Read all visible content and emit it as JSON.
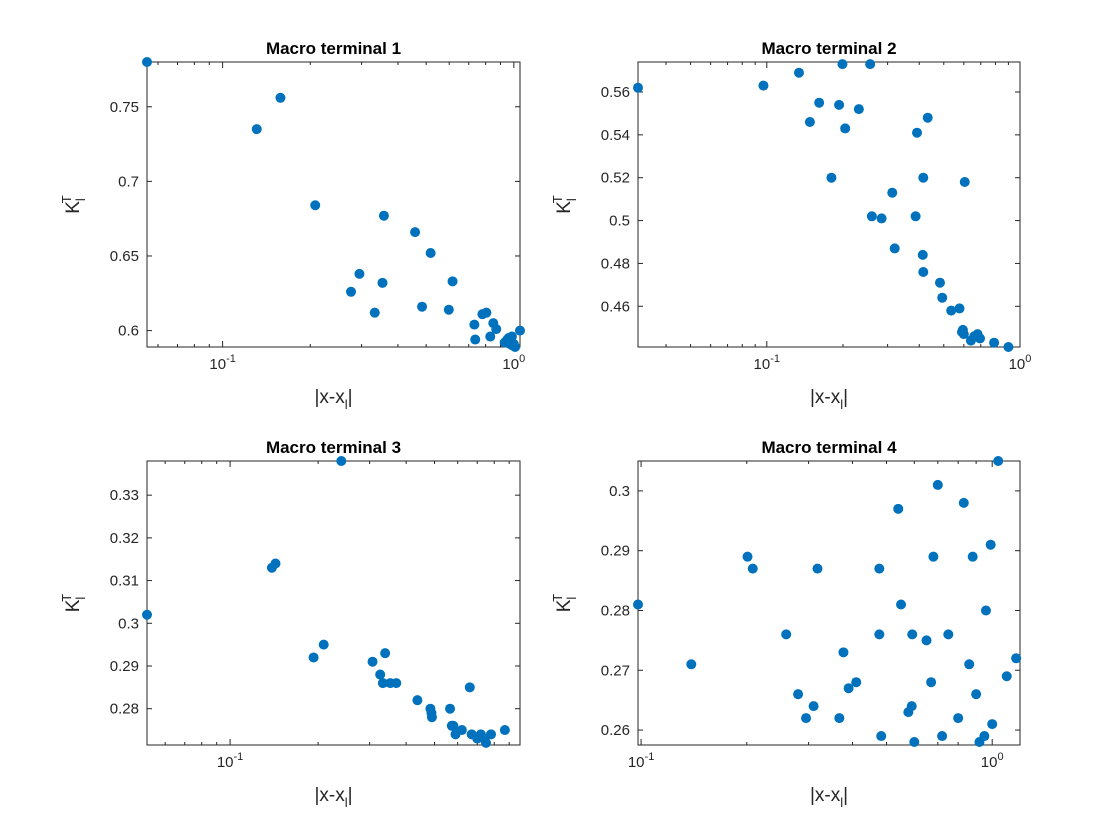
{
  "figure": {
    "background": "#ffffff",
    "marker_color": "#0072bd"
  },
  "chart_data": [
    {
      "type": "scatter",
      "title": "Macro terminal 1",
      "xlabel": "|x-x_l|",
      "ylabel": "K_l^T",
      "xscale": "log",
      "xlim": [
        0.055,
        1.05
      ],
      "ylim": [
        0.589,
        0.78
      ],
      "xticks": [
        0.1,
        1
      ],
      "xtick_labels": [
        "10^-1",
        "10^0"
      ],
      "yticks": [
        0.6,
        0.65,
        0.7,
        0.75
      ],
      "ytick_labels": [
        "0.6",
        "0.65",
        "0.7",
        "0.75"
      ],
      "grid": false,
      "x": [
        0.055,
        0.131,
        0.158,
        0.208,
        0.276,
        0.295,
        0.333,
        0.354,
        0.358,
        0.458,
        0.484,
        0.518,
        0.598,
        0.616,
        0.732,
        0.737,
        0.78,
        0.805,
        0.83,
        0.85,
        0.87,
        0.93,
        0.96,
        0.97,
        0.99,
        1.0,
        1.01,
        1.05,
        0.95,
        0.985
      ],
      "y": [
        0.78,
        0.735,
        0.756,
        0.684,
        0.626,
        0.638,
        0.612,
        0.632,
        0.677,
        0.666,
        0.616,
        0.652,
        0.614,
        0.633,
        0.604,
        0.594,
        0.611,
        0.612,
        0.596,
        0.605,
        0.601,
        0.592,
        0.595,
        0.591,
        0.59,
        0.591,
        0.589,
        0.6,
        0.594,
        0.596
      ]
    },
    {
      "type": "scatter",
      "title": "Macro terminal 2",
      "xlabel": "|x-x_l|",
      "ylabel": "K_l^T",
      "xscale": "log",
      "xlim": [
        0.031,
        1.0
      ],
      "ylim": [
        0.441,
        0.574
      ],
      "xticks": [
        0.1,
        1
      ],
      "xtick_labels": [
        "10^-1",
        "10^0"
      ],
      "yticks": [
        0.46,
        0.48,
        0.5,
        0.52,
        0.54,
        0.56
      ],
      "ytick_labels": [
        "0.46",
        "0.48",
        "0.5",
        "0.52",
        "0.54",
        "0.56"
      ],
      "grid": false,
      "x": [
        0.031,
        0.097,
        0.134,
        0.148,
        0.161,
        0.18,
        0.193,
        0.204,
        0.199,
        0.231,
        0.256,
        0.26,
        0.284,
        0.313,
        0.32,
        0.387,
        0.392,
        0.415,
        0.413,
        0.415,
        0.432,
        0.483,
        0.493,
        0.535,
        0.577,
        0.595,
        0.6,
        0.605,
        0.64,
        0.66,
        0.68,
        0.695,
        0.79,
        0.9,
        0.59
      ],
      "y": [
        0.562,
        0.563,
        0.569,
        0.546,
        0.555,
        0.52,
        0.554,
        0.543,
        0.573,
        0.552,
        0.573,
        0.502,
        0.501,
        0.513,
        0.487,
        0.502,
        0.541,
        0.52,
        0.484,
        0.476,
        0.548,
        0.471,
        0.464,
        0.458,
        0.459,
        0.449,
        0.447,
        0.518,
        0.444,
        0.446,
        0.447,
        0.445,
        0.443,
        0.441,
        0.448
      ]
    },
    {
      "type": "scatter",
      "title": "Macro terminal 3",
      "xlabel": "|x-x_l|",
      "ylabel": "K_l^T",
      "xscale": "log",
      "xlim": [
        0.052,
        0.98
      ],
      "ylim": [
        0.2715,
        0.338
      ],
      "xticks": [
        0.1,
        1
      ],
      "xtick_labels": [
        "10^-1",
        "10^0"
      ],
      "yticks": [
        0.28,
        0.29,
        0.3,
        0.31,
        0.32,
        0.33
      ],
      "ytick_labels": [
        "0.28",
        "0.29",
        "0.3",
        "0.31",
        "0.32",
        "0.33"
      ],
      "grid": false,
      "x": [
        0.052,
        0.139,
        0.143,
        0.193,
        0.209,
        0.24,
        0.307,
        0.326,
        0.333,
        0.339,
        0.353,
        0.37,
        0.437,
        0.484,
        0.488,
        0.49,
        0.565,
        0.573,
        0.58,
        0.62,
        0.66,
        0.67,
        0.72,
        0.75,
        0.78,
        0.87,
        0.59,
        0.7,
        0.74
      ],
      "y": [
        0.302,
        0.313,
        0.314,
        0.292,
        0.295,
        0.338,
        0.291,
        0.288,
        0.286,
        0.293,
        0.286,
        0.286,
        0.282,
        0.28,
        0.279,
        0.278,
        0.28,
        0.276,
        0.276,
        0.275,
        0.285,
        0.274,
        0.274,
        0.272,
        0.274,
        0.275,
        0.274,
        0.273,
        0.273
      ]
    },
    {
      "type": "scatter",
      "title": "Macro terminal 4",
      "xlabel": "|x-x_l|",
      "ylabel": "K_l^T",
      "xscale": "log",
      "xlim": [
        0.098,
        1.2
      ],
      "ylim": [
        0.2575,
        0.305
      ],
      "xticks": [
        0.1,
        1
      ],
      "xtick_labels": [
        "10^-1",
        "10^0"
      ],
      "yticks": [
        0.26,
        0.27,
        0.28,
        0.29,
        0.3
      ],
      "ytick_labels": [
        "0.26",
        "0.27",
        "0.28",
        "0.29",
        "0.3"
      ],
      "grid": false,
      "x": [
        0.098,
        0.139,
        0.201,
        0.208,
        0.259,
        0.28,
        0.295,
        0.31,
        0.318,
        0.367,
        0.377,
        0.39,
        0.41,
        0.477,
        0.477,
        0.483,
        0.54,
        0.55,
        0.577,
        0.592,
        0.59,
        0.6,
        0.65,
        0.67,
        0.68,
        0.7,
        0.72,
        0.75,
        0.8,
        0.83,
        0.86,
        0.88,
        0.9,
        0.92,
        0.96,
        0.99,
        1.0,
        1.04,
        1.1,
        1.17,
        0.95
      ],
      "y": [
        0.281,
        0.271,
        0.289,
        0.287,
        0.276,
        0.266,
        0.262,
        0.264,
        0.287,
        0.262,
        0.273,
        0.267,
        0.268,
        0.287,
        0.276,
        0.259,
        0.297,
        0.281,
        0.263,
        0.276,
        0.264,
        0.258,
        0.275,
        0.268,
        0.289,
        0.301,
        0.259,
        0.276,
        0.262,
        0.298,
        0.271,
        0.289,
        0.266,
        0.258,
        0.28,
        0.291,
        0.261,
        0.305,
        0.269,
        0.272,
        0.259
      ]
    }
  ]
}
